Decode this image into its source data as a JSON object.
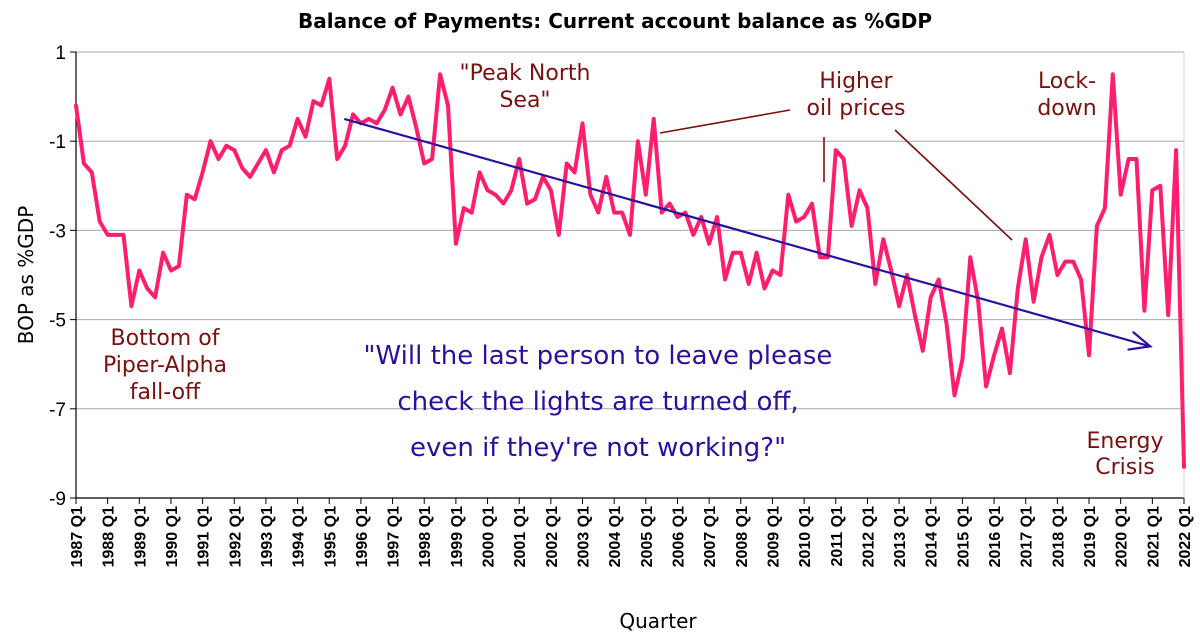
{
  "chart_data": {
    "type": "line",
    "title": "Balance of Payments: Current account balance as %GDP",
    "xlabel": "Quarter",
    "ylabel": "BOP as %GDP",
    "ylim": [
      -9,
      1
    ],
    "yticks": [
      "1",
      "-1",
      "-3",
      "-5",
      "-7",
      "-9"
    ],
    "ytick_values": [
      1,
      -1,
      -3,
      -5,
      -7,
      -9
    ],
    "grid": true,
    "x_start": "1987 Q1",
    "x_end": "2022 Q1",
    "x_tick_labels": [
      "1987 Q1",
      "1988 Q1",
      "1989 Q1",
      "1990 Q1",
      "1991 Q1",
      "1992 Q1",
      "1993 Q1",
      "1994 Q1",
      "1995 Q1",
      "1996 Q1",
      "1997 Q1",
      "1998 Q1",
      "1999 Q1",
      "2000 Q1",
      "2001 Q1",
      "2002 Q1",
      "2003 Q1",
      "2004 Q1",
      "2005 Q1",
      "2006 Q1",
      "2007 Q1",
      "2008 Q1",
      "2009 Q1",
      "2010 Q1",
      "2011 Q1",
      "2012 Q1",
      "2013 Q1",
      "2014 Q1",
      "2015 Q1",
      "2016 Q1",
      "2017 Q1",
      "2018 Q1",
      "2019 Q1",
      "2020 Q1",
      "2021 Q1",
      "2022 Q1"
    ],
    "series": [
      {
        "color": "#ff1e6e",
        "values": [
          -0.2,
          -1.5,
          -1.7,
          -2.8,
          -3.1,
          -3.1,
          -3.1,
          -4.7,
          -3.9,
          -4.3,
          -4.5,
          -3.5,
          -3.9,
          -3.8,
          -2.2,
          -2.3,
          -1.7,
          -1.0,
          -1.4,
          -1.1,
          -1.2,
          -1.6,
          -1.8,
          -1.5,
          -1.2,
          -1.7,
          -1.2,
          -1.1,
          -0.5,
          -0.9,
          -0.1,
          -0.2,
          0.4,
          -1.4,
          -1.1,
          -0.4,
          -0.6,
          -0.5,
          -0.6,
          -0.3,
          0.2,
          -0.4,
          0.0,
          -0.7,
          -1.5,
          -1.4,
          0.5,
          -0.2,
          -3.3,
          -2.5,
          -2.6,
          -1.7,
          -2.1,
          -2.2,
          -2.4,
          -2.1,
          -1.4,
          -2.4,
          -2.3,
          -1.8,
          -2.1,
          -3.1,
          -1.5,
          -1.7,
          -0.6,
          -2.2,
          -2.6,
          -1.8,
          -2.6,
          -2.6,
          -3.1,
          -1.0,
          -2.2,
          -0.5,
          -2.6,
          -2.4,
          -2.7,
          -2.6,
          -3.1,
          -2.7,
          -3.3,
          -2.7,
          -4.1,
          -3.5,
          -3.5,
          -4.2,
          -3.5,
          -4.3,
          -3.9,
          -4.0,
          -2.2,
          -2.8,
          -2.7,
          -2.4,
          -3.6,
          -3.6,
          -1.2,
          -1.4,
          -2.9,
          -2.1,
          -2.5,
          -4.2,
          -3.2,
          -3.9,
          -4.7,
          -4.0,
          -4.9,
          -5.7,
          -4.5,
          -4.1,
          -5.1,
          -6.7,
          -5.9,
          -3.6,
          -4.6,
          -6.5,
          -5.8,
          -5.2,
          -6.2,
          -4.3,
          -3.2,
          -4.6,
          -3.6,
          -3.1,
          -4.0,
          -3.7,
          -3.7,
          -4.1,
          -5.8,
          -2.9,
          -2.5,
          0.5,
          -2.2,
          -1.4,
          -1.4,
          -4.8,
          -2.1,
          -2.0,
          -4.9,
          -1.2,
          -8.3
        ]
      }
    ],
    "trend_line": {
      "from": [
        "1995 Q1",
        -0.5
      ],
      "to": [
        "2021 Q2",
        -5.6
      ],
      "color": "#2d0fa0"
    },
    "annotations": [
      {
        "lines": [
          "Bottom of",
          "Piper-Alpha",
          "fall-off"
        ]
      },
      {
        "lines": [
          "\"Peak North",
          "Sea\""
        ]
      },
      {
        "lines": [
          "Higher",
          "oil prices"
        ]
      },
      {
        "lines": [
          "Lock-",
          "down"
        ]
      },
      {
        "lines": [
          "Energy",
          "Crisis"
        ]
      },
      {
        "lines": [
          "\"Will the last person to leave please",
          "check the lights are turned off,",
          "even if they're not working?\""
        ]
      }
    ]
  }
}
